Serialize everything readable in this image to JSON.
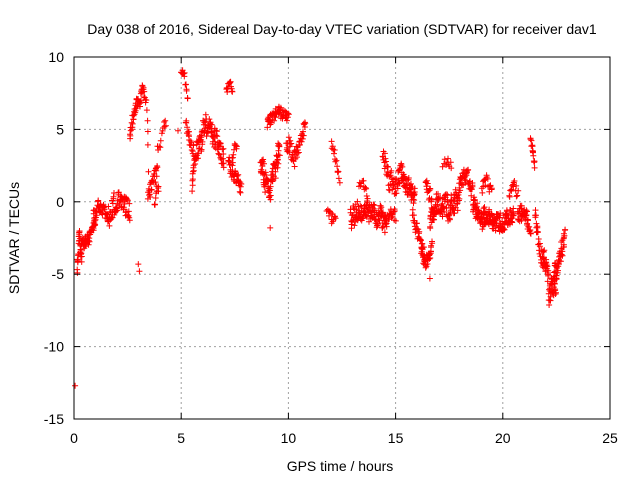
{
  "chart_data": {
    "type": "scatter",
    "title": "Day 038 of 2016, Sidereal Day-to-day VTEC variation (SDTVAR) for receiver dav1",
    "xlabel": "GPS time / hours",
    "ylabel": "SDTVAR / TECUs",
    "xlim": [
      0,
      25
    ],
    "ylim": [
      -15,
      10
    ],
    "xticks": [
      0,
      5,
      10,
      15,
      20,
      25
    ],
    "yticks": [
      -15,
      -10,
      -5,
      0,
      5,
      10
    ],
    "xtick_labels": [
      "0",
      "5",
      "10",
      "15",
      "20",
      "25"
    ],
    "ytick_labels": [
      "-15",
      "-10",
      "-5",
      "0",
      "5",
      "10"
    ],
    "grid": true,
    "marker": "+",
    "series": [
      {
        "name": "SDTVAR",
        "color": "#ff0000",
        "outliers": [
          {
            "x": 0.05,
            "y": -12.7
          },
          {
            "x": 3.0,
            "y": -4.3
          },
          {
            "x": 3.05,
            "y": -4.8
          },
          {
            "x": 4.85,
            "y": 4.9
          },
          {
            "x": 9.15,
            "y": -1.8
          },
          {
            "x": 16.6,
            "y": -5.3
          }
        ],
        "segments": [
          {
            "t0": 0.15,
            "t1": 0.35,
            "knots": [
              [
                0.15,
                -4.7
              ],
              [
                0.25,
                -2.0
              ],
              [
                0.35,
                -4.4
              ]
            ],
            "spread": 0.6,
            "n": 30
          },
          {
            "t0": 0.35,
            "t1": 1.0,
            "knots": [
              [
                0.35,
                -3.0
              ],
              [
                0.7,
                -2.5
              ],
              [
                1.0,
                -1.5
              ]
            ],
            "spread": 0.8,
            "n": 55
          },
          {
            "t0": 0.9,
            "t1": 1.6,
            "knots": [
              [
                0.9,
                -1.0
              ],
              [
                1.2,
                -0.2
              ],
              [
                1.6,
                -1.0
              ]
            ],
            "spread": 0.8,
            "n": 40
          },
          {
            "t0": 1.6,
            "t1": 2.6,
            "knots": [
              [
                1.6,
                -1.0
              ],
              [
                2.1,
                0.3
              ],
              [
                2.6,
                -0.5
              ]
            ],
            "spread": 1.4,
            "n": 70
          },
          {
            "t0": 2.6,
            "t1": 3.2,
            "knots": [
              [
                2.6,
                4.8
              ],
              [
                2.9,
                6.6
              ],
              [
                3.2,
                7.6
              ]
            ],
            "spread": 0.9,
            "n": 40
          },
          {
            "t0": 3.2,
            "t1": 3.5,
            "knots": [
              [
                3.2,
                7.8
              ],
              [
                3.4,
                6.5
              ],
              [
                3.5,
                0.7
              ]
            ],
            "spread": 0.7,
            "n": 15
          },
          {
            "t0": 3.45,
            "t1": 3.9,
            "knots": [
              [
                3.45,
                0.5
              ],
              [
                3.7,
                1.5
              ],
              [
                3.9,
                2.2
              ]
            ],
            "spread": 1.0,
            "n": 25
          },
          {
            "t0": 3.75,
            "t1": 3.95,
            "knots": [
              [
                3.75,
                -0.5
              ],
              [
                3.85,
                1.0
              ],
              [
                3.95,
                0.6
              ]
            ],
            "spread": 0.8,
            "n": 10
          },
          {
            "t0": 3.9,
            "t1": 4.3,
            "knots": [
              [
                3.9,
                3.5
              ],
              [
                4.1,
                4.8
              ],
              [
                4.3,
                5.5
              ]
            ],
            "spread": 0.8,
            "n": 12
          },
          {
            "t0": 5.0,
            "t1": 5.3,
            "knots": [
              [
                5.0,
                9.1
              ],
              [
                5.15,
                8.7
              ],
              [
                5.3,
                7.0
              ]
            ],
            "spread": 0.5,
            "n": 14
          },
          {
            "t0": 5.2,
            "t1": 5.6,
            "knots": [
              [
                5.2,
                5.5
              ],
              [
                5.4,
                4.0
              ],
              [
                5.6,
                3.5
              ]
            ],
            "spread": 0.9,
            "n": 22
          },
          {
            "t0": 5.5,
            "t1": 6.0,
            "knots": [
              [
                5.5,
                1.0
              ],
              [
                5.7,
                3.5
              ],
              [
                6.0,
                4.5
              ]
            ],
            "spread": 1.5,
            "n": 40
          },
          {
            "t0": 6.0,
            "t1": 7.0,
            "knots": [
              [
                6.0,
                5.5
              ],
              [
                6.5,
                4.5
              ],
              [
                7.0,
                3.0
              ]
            ],
            "spread": 1.4,
            "n": 70
          },
          {
            "t0": 7.1,
            "t1": 7.4,
            "knots": [
              [
                7.1,
                7.6
              ],
              [
                7.25,
                8.3
              ],
              [
                7.4,
                7.8
              ]
            ],
            "spread": 0.5,
            "n": 15
          },
          {
            "t0": 7.2,
            "t1": 7.8,
            "knots": [
              [
                7.2,
                2.5
              ],
              [
                7.5,
                1.7
              ],
              [
                7.8,
                1.0
              ]
            ],
            "spread": 1.1,
            "n": 38
          },
          {
            "t0": 7.4,
            "t1": 7.6,
            "knots": [
              [
                7.4,
                3.0
              ],
              [
                7.5,
                4.2
              ],
              [
                7.6,
                3.5
              ]
            ],
            "spread": 0.6,
            "n": 10
          },
          {
            "t0": 8.7,
            "t1": 9.6,
            "knots": [
              [
                8.7,
                2.5
              ],
              [
                9.1,
                0.8
              ],
              [
                9.6,
                3.5
              ]
            ],
            "spread": 1.6,
            "n": 80
          },
          {
            "t0": 9.0,
            "t1": 10.0,
            "knots": [
              [
                9.0,
                5.5
              ],
              [
                9.5,
                6.3
              ],
              [
                10.0,
                5.8
              ]
            ],
            "spread": 0.8,
            "n": 55
          },
          {
            "t0": 9.9,
            "t1": 10.8,
            "knots": [
              [
                9.9,
                4.0
              ],
              [
                10.3,
                3.0
              ],
              [
                10.8,
                5.2
              ]
            ],
            "spread": 1.2,
            "n": 50
          },
          {
            "t0": 12.0,
            "t1": 12.4,
            "knots": [
              [
                12.0,
                4.0
              ],
              [
                12.2,
                3.0
              ],
              [
                12.4,
                1.5
              ]
            ],
            "spread": 0.6,
            "n": 15
          },
          {
            "t0": 11.8,
            "t1": 12.2,
            "knots": [
              [
                11.8,
                -0.5
              ],
              [
                12.0,
                -1.2
              ],
              [
                12.2,
                -1.0
              ]
            ],
            "spread": 0.6,
            "n": 15
          },
          {
            "t0": 12.9,
            "t1": 14.6,
            "knots": [
              [
                12.9,
                -1.0
              ],
              [
                13.5,
                -0.6
              ],
              [
                14.0,
                -0.8
              ],
              [
                14.6,
                -1.5
              ]
            ],
            "spread": 1.3,
            "n": 130
          },
          {
            "t0": 13.3,
            "t1": 13.7,
            "knots": [
              [
                13.3,
                1.0
              ],
              [
                13.5,
                1.3
              ],
              [
                13.7,
                0.5
              ]
            ],
            "spread": 0.5,
            "n": 12
          },
          {
            "t0": 14.4,
            "t1": 15.3,
            "knots": [
              [
                14.4,
                3.5
              ],
              [
                14.7,
                1.5
              ],
              [
                15.0,
                1.0
              ],
              [
                15.3,
                2.2
              ]
            ],
            "spread": 1.3,
            "n": 55
          },
          {
            "t0": 14.5,
            "t1": 15.0,
            "knots": [
              [
                14.5,
                -1.5
              ],
              [
                14.8,
                -0.8
              ],
              [
                15.0,
                -1.0
              ]
            ],
            "spread": 0.8,
            "n": 25
          },
          {
            "t0": 15.3,
            "t1": 15.9,
            "knots": [
              [
                15.3,
                1.5
              ],
              [
                15.6,
                1.0
              ],
              [
                15.9,
                0.5
              ]
            ],
            "spread": 1.3,
            "n": 50
          },
          {
            "t0": 15.8,
            "t1": 16.3,
            "knots": [
              [
                15.8,
                -1.0
              ],
              [
                16.1,
                -2.5
              ],
              [
                16.3,
                -3.5
              ]
            ],
            "spread": 1.0,
            "n": 30
          },
          {
            "t0": 16.2,
            "t1": 16.7,
            "knots": [
              [
                16.2,
                -3.2
              ],
              [
                16.4,
                -4.3
              ],
              [
                16.7,
                -3.0
              ]
            ],
            "spread": 0.9,
            "n": 40
          },
          {
            "t0": 16.4,
            "t1": 16.8,
            "knots": [
              [
                16.4,
                1.5
              ],
              [
                16.6,
                0.3
              ],
              [
                16.8,
                -0.5
              ]
            ],
            "spread": 1.2,
            "n": 22
          },
          {
            "t0": 16.6,
            "t1": 18.0,
            "knots": [
              [
                16.6,
                -1.0
              ],
              [
                17.0,
                0.0
              ],
              [
                17.5,
                -0.5
              ],
              [
                18.0,
                0.5
              ]
            ],
            "spread": 1.6,
            "n": 110
          },
          {
            "t0": 17.2,
            "t1": 17.6,
            "knots": [
              [
                17.2,
                2.5
              ],
              [
                17.4,
                3.0
              ],
              [
                17.6,
                2.5
              ]
            ],
            "spread": 0.6,
            "n": 10
          },
          {
            "t0": 18.0,
            "t1": 18.6,
            "knots": [
              [
                18.0,
                1.5
              ],
              [
                18.3,
                2.0
              ],
              [
                18.6,
                0.5
              ]
            ],
            "spread": 1.1,
            "n": 40
          },
          {
            "t0": 18.6,
            "t1": 19.5,
            "knots": [
              [
                18.6,
                0.0
              ],
              [
                19.0,
                -1.2
              ],
              [
                19.5,
                -1.0
              ]
            ],
            "spread": 1.3,
            "n": 80
          },
          {
            "t0": 19.0,
            "t1": 19.5,
            "knots": [
              [
                19.0,
                1.0
              ],
              [
                19.25,
                1.5
              ],
              [
                19.5,
                0.5
              ]
            ],
            "spread": 0.7,
            "n": 18
          },
          {
            "t0": 19.5,
            "t1": 20.5,
            "knots": [
              [
                19.5,
                -1.3
              ],
              [
                20.0,
                -1.5
              ],
              [
                20.5,
                -0.8
              ]
            ],
            "spread": 1.1,
            "n": 85
          },
          {
            "t0": 20.3,
            "t1": 20.7,
            "knots": [
              [
                20.3,
                0.5
              ],
              [
                20.5,
                1.2
              ],
              [
                20.7,
                0.5
              ]
            ],
            "spread": 0.9,
            "n": 15
          },
          {
            "t0": 20.7,
            "t1": 21.3,
            "knots": [
              [
                20.7,
                -1.0
              ],
              [
                21.0,
                -0.5
              ],
              [
                21.3,
                -2.0
              ]
            ],
            "spread": 1.0,
            "n": 45
          },
          {
            "t0": 21.3,
            "t1": 21.5,
            "knots": [
              [
                21.3,
                4.2
              ],
              [
                21.4,
                3.5
              ],
              [
                21.5,
                2.5
              ]
            ],
            "spread": 0.6,
            "n": 15
          },
          {
            "t0": 21.5,
            "t1": 21.9,
            "knots": [
              [
                21.5,
                -1.0
              ],
              [
                21.7,
                -3.0
              ],
              [
                21.9,
                -4.5
              ]
            ],
            "spread": 1.2,
            "n": 30
          },
          {
            "t0": 21.9,
            "t1": 22.5,
            "knots": [
              [
                21.9,
                -3.5
              ],
              [
                22.2,
                -6.5
              ],
              [
                22.5,
                -5.5
              ]
            ],
            "spread": 1.5,
            "n": 60
          },
          {
            "t0": 22.4,
            "t1": 22.9,
            "knots": [
              [
                22.4,
                -5.0
              ],
              [
                22.65,
                -4.0
              ],
              [
                22.9,
                -2.5
              ]
            ],
            "spread": 1.3,
            "n": 45
          }
        ]
      }
    ]
  }
}
